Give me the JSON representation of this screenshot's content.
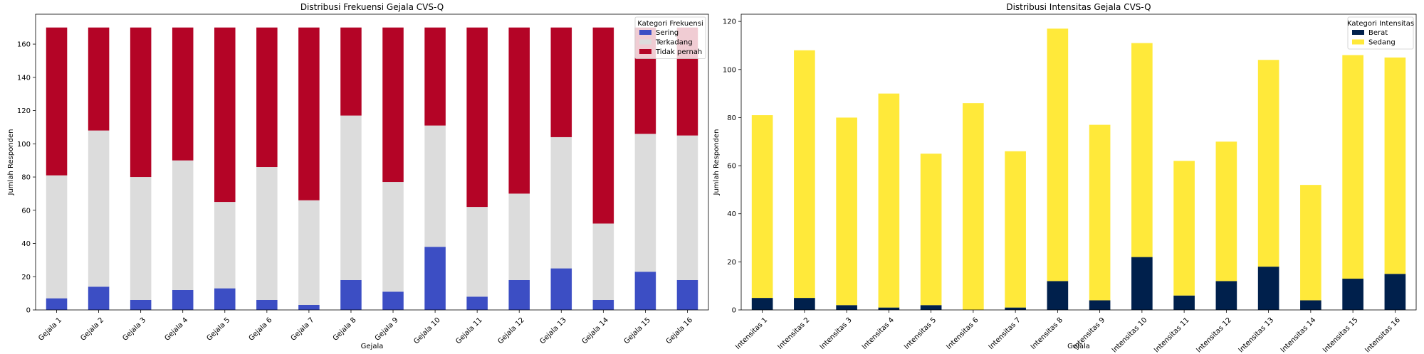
{
  "chart_data": [
    {
      "type": "bar",
      "stacked": true,
      "title": "Distribusi Frekuensi Gejala CVS-Q",
      "xlabel": "Gejala",
      "ylabel": "Jumlah Responden",
      "ylim": [
        0,
        178
      ],
      "yticks": [
        0,
        20,
        40,
        60,
        80,
        100,
        120,
        140,
        160
      ],
      "categories": [
        "Gejala 1",
        "Gejala 2",
        "Gejala 3",
        "Gejala 4",
        "Gejala 5",
        "Gejala 6",
        "Gejala 7",
        "Gejala 8",
        "Gejala 9",
        "Gejala 10",
        "Gejala 11",
        "Gejala 12",
        "Gejala 13",
        "Gejala 14",
        "Gejala 15",
        "Gejala 16"
      ],
      "legend": {
        "title": "Kategori Frekuensi",
        "position": "top-right"
      },
      "series": [
        {
          "name": "Sering",
          "color": "#3c4ec4",
          "values": [
            7,
            14,
            6,
            12,
            13,
            6,
            3,
            18,
            11,
            38,
            8,
            18,
            25,
            6,
            23,
            18
          ]
        },
        {
          "name": "Terkadang",
          "color": "#dcdcdc",
          "values": [
            74,
            94,
            74,
            78,
            52,
            80,
            63,
            99,
            66,
            73,
            54,
            52,
            79,
            46,
            83,
            87
          ]
        },
        {
          "name": "Tidak pernah",
          "color": "#b40426",
          "values": [
            89,
            62,
            90,
            80,
            105,
            84,
            104,
            53,
            93,
            59,
            108,
            100,
            66,
            118,
            64,
            65
          ]
        }
      ]
    },
    {
      "type": "bar",
      "stacked": true,
      "title": "Distribusi Intensitas Gejala CVS-Q",
      "xlabel": "Gejala",
      "ylabel": "Jumlah Responden",
      "ylim": [
        0,
        123
      ],
      "yticks": [
        0,
        20,
        40,
        60,
        80,
        100,
        120
      ],
      "categories": [
        "Intensitas 1",
        "Intensitas 2",
        "Intensitas 3",
        "Intensitas 4",
        "Intensitas 5",
        "Intensitas 6",
        "Intensitas 7",
        "Intensitas 8",
        "Intensitas 9",
        "Intensitas 10",
        "Intensitas 11",
        "Intensitas 12",
        "Intensitas 13",
        "Intensitas 14",
        "Intensitas 15",
        "Intensitas 16"
      ],
      "legend": {
        "title": "Kategori Intensitas",
        "position": "top-right"
      },
      "series": [
        {
          "name": "Berat",
          "color": "#00204c",
          "values": [
            5,
            5,
            2,
            1,
            2,
            0,
            1,
            12,
            4,
            22,
            6,
            12,
            18,
            4,
            13,
            15
          ]
        },
        {
          "name": "Sedang",
          "color": "#ffe93a",
          "values": [
            76,
            103,
            78,
            89,
            63,
            86,
            65,
            105,
            73,
            89,
            56,
            58,
            86,
            48,
            93,
            90
          ]
        }
      ]
    }
  ]
}
